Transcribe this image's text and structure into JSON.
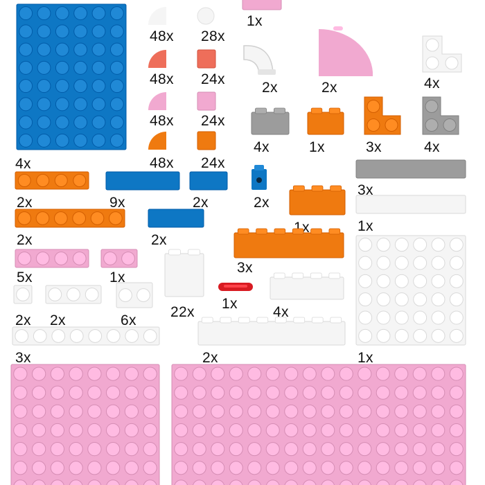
{
  "palette": {
    "blue": "#0e77c4",
    "orange": "#ef7a10",
    "pink": "#f1a9d0",
    "white": "#f5f5f5",
    "gray": "#9c9c9c",
    "salmon": "#ee6e5a",
    "red": "#d81b22"
  },
  "pieces": [
    {
      "id": "blue-baseplate-8x10",
      "color": "blue",
      "kind": "plate",
      "qty": "4x"
    },
    {
      "id": "white-round-tile-1x1",
      "color": "white",
      "kind": "round-tile",
      "qty": "28x"
    },
    {
      "id": "white-quarter-tile-1x1",
      "color": "white",
      "kind": "quarter-tile",
      "qty": "48x"
    },
    {
      "id": "salmon-quarter-tile-1x1",
      "color": "salmon",
      "kind": "quarter-tile",
      "qty": "48x"
    },
    {
      "id": "salmon-tile-1x1",
      "color": "salmon",
      "kind": "tile",
      "qty": "24x"
    },
    {
      "id": "pink-quarter-tile-1x1",
      "color": "pink",
      "kind": "quarter-tile",
      "qty": "48x"
    },
    {
      "id": "pink-tile-1x1",
      "color": "pink",
      "kind": "tile",
      "qty": "24x"
    },
    {
      "id": "orange-quarter-tile-1x1",
      "color": "orange",
      "kind": "quarter-tile",
      "qty": "48x"
    },
    {
      "id": "orange-tile-1x1",
      "color": "orange",
      "kind": "tile",
      "qty": "24x"
    },
    {
      "id": "pink-brick-top",
      "color": "pink",
      "kind": "brick",
      "qty": "1x"
    },
    {
      "id": "white-curved-pipe",
      "color": "white",
      "kind": "pipe",
      "qty": "2x"
    },
    {
      "id": "pink-quarter-round-4x4",
      "color": "pink",
      "kind": "quarter-round",
      "qty": "2x"
    },
    {
      "id": "white-corner-plate-2x2",
      "color": "white",
      "kind": "corner-plate",
      "qty": "4x"
    },
    {
      "id": "gray-plate-1x2",
      "color": "gray",
      "kind": "plate",
      "qty": "4x"
    },
    {
      "id": "orange-brick-1x2",
      "color": "orange",
      "kind": "brick",
      "qty": "1x"
    },
    {
      "id": "orange-corner-plate",
      "color": "orange",
      "kind": "corner-plate",
      "qty": "3x"
    },
    {
      "id": "gray-corner-plate",
      "color": "gray",
      "kind": "corner-plate",
      "qty": "4x"
    },
    {
      "id": "orange-plate-1x4",
      "color": "orange",
      "kind": "plate",
      "qty": "2x"
    },
    {
      "id": "blue-tile-1x4",
      "color": "blue",
      "kind": "tile",
      "qty": "9x"
    },
    {
      "id": "blue-tile-1x2",
      "color": "blue",
      "kind": "tile",
      "qty": "2x"
    },
    {
      "id": "blue-brick-1x1-hole",
      "color": "blue",
      "kind": "brick",
      "qty": "2x"
    },
    {
      "id": "gray-tile-1x6",
      "color": "gray",
      "kind": "tile",
      "qty": "3x"
    },
    {
      "id": "orange-plate-1x6",
      "color": "orange",
      "kind": "plate",
      "qty": "2x"
    },
    {
      "id": "blue-tile-1x3",
      "color": "blue",
      "kind": "tile",
      "qty": "2x"
    },
    {
      "id": "orange-brick-2x3",
      "color": "orange",
      "kind": "brick",
      "qty": "1x"
    },
    {
      "id": "white-tile-1x6",
      "color": "white",
      "kind": "tile",
      "qty": "1x"
    },
    {
      "id": "orange-plate-2x6",
      "color": "orange",
      "kind": "plate",
      "qty": "3x"
    },
    {
      "id": "pink-plate-1x4",
      "color": "pink",
      "kind": "plate",
      "qty": "5x"
    },
    {
      "id": "pink-plate-1x2",
      "color": "pink",
      "kind": "plate",
      "qty": "1x"
    },
    {
      "id": "white-brick-1x2-tall",
      "color": "white",
      "kind": "brick",
      "qty": "22x"
    },
    {
      "id": "red-bar-holder",
      "color": "red",
      "kind": "bar",
      "qty": "1x"
    },
    {
      "id": "white-plate-6x6",
      "color": "white",
      "kind": "plate",
      "qty": "1x"
    },
    {
      "id": "white-plate-1x1",
      "color": "white",
      "kind": "plate",
      "qty": "2x"
    },
    {
      "id": "white-plate-1x3",
      "color": "white",
      "kind": "plate",
      "qty": "2x"
    },
    {
      "id": "white-brick-1x2-low",
      "color": "white",
      "kind": "brick",
      "qty": "6x"
    },
    {
      "id": "white-brick-1x4",
      "color": "white",
      "kind": "brick",
      "qty": "4x"
    },
    {
      "id": "white-plate-1x8",
      "color": "white",
      "kind": "plate",
      "qty": "3x"
    },
    {
      "id": "white-plate-1x8-tall",
      "color": "white",
      "kind": "plate",
      "qty": "2x"
    },
    {
      "id": "pink-baseplate-8x8",
      "color": "pink",
      "kind": "plate",
      "qty": ""
    },
    {
      "id": "pink-baseplate-16x8",
      "color": "pink",
      "kind": "plate",
      "qty": ""
    }
  ]
}
